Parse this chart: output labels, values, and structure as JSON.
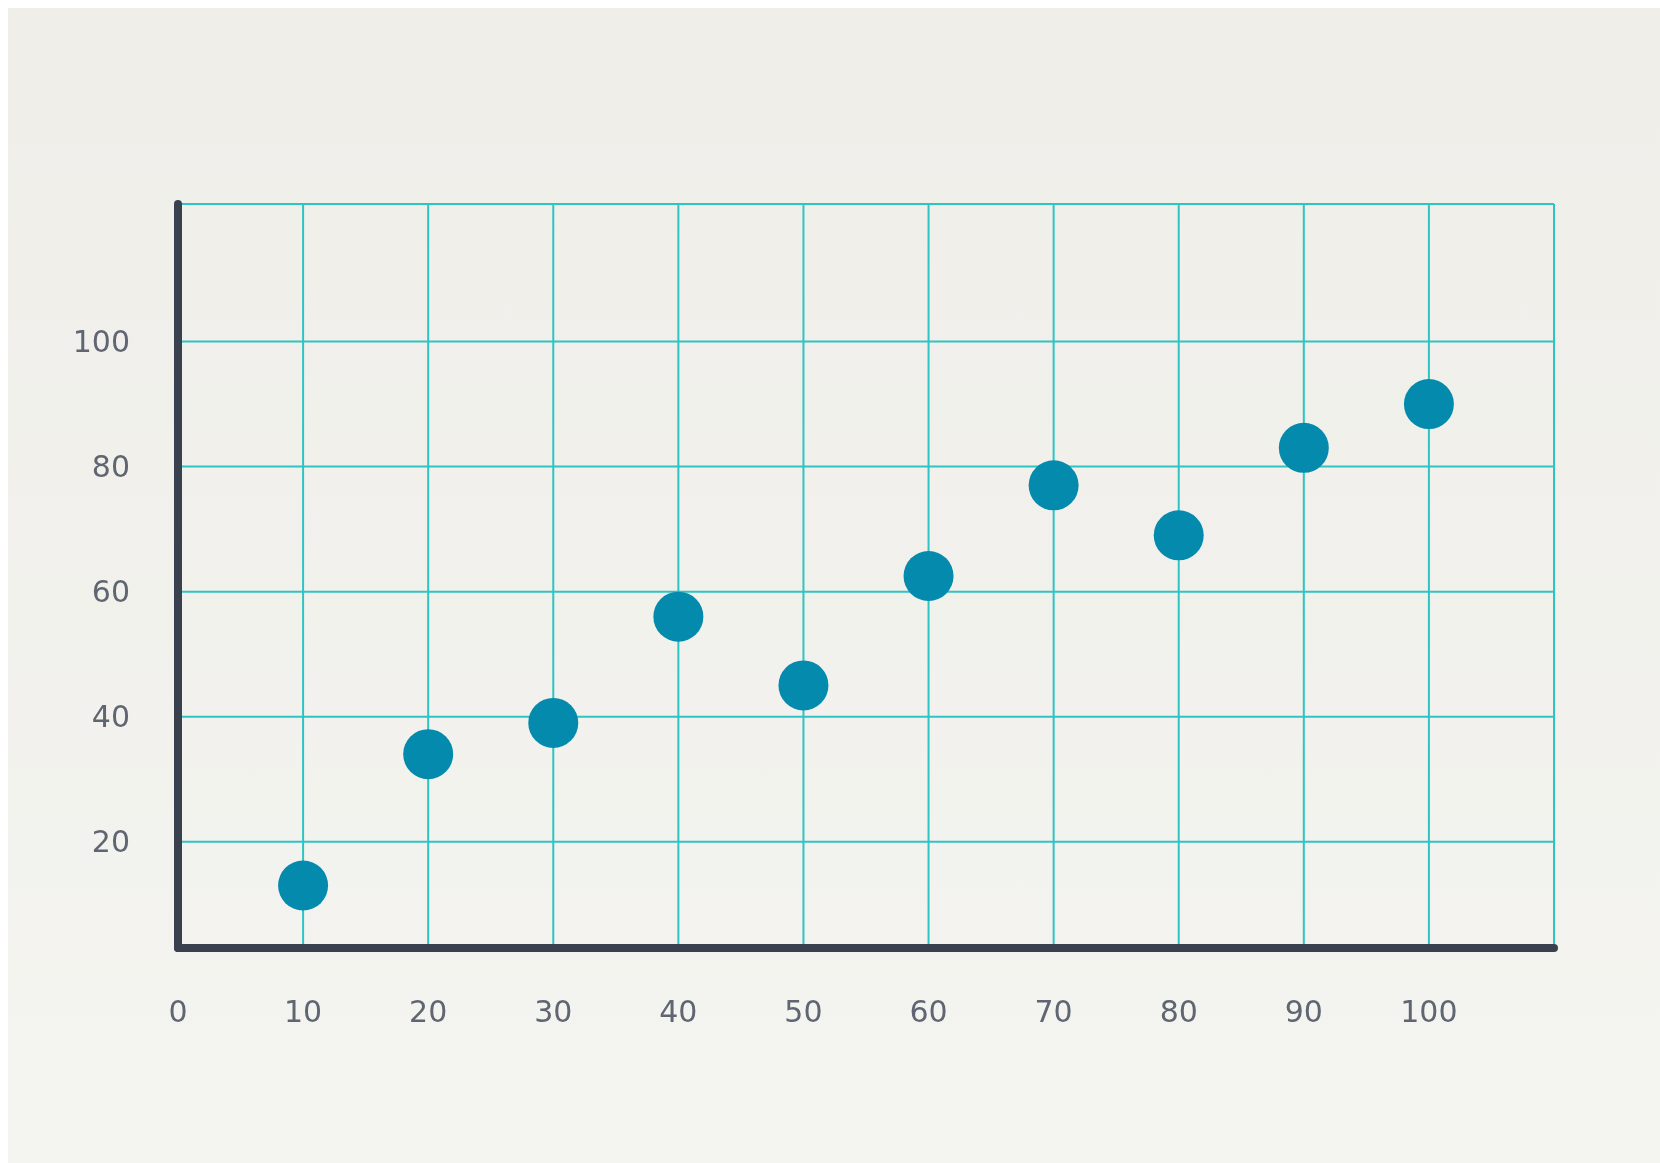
{
  "chart_data": {
    "type": "scatter",
    "x": [
      10,
      20,
      30,
      40,
      50,
      60,
      70,
      80,
      90,
      100
    ],
    "values": [
      13,
      34,
      39,
      56,
      45,
      62.5,
      77,
      69,
      83,
      90
    ],
    "color": "#038aad",
    "xlim": [
      0,
      110
    ],
    "ylim": [
      3,
      122
    ],
    "xticks": [
      0,
      10,
      20,
      30,
      40,
      50,
      60,
      70,
      80,
      90,
      100
    ],
    "yticks": [
      20,
      40,
      60,
      80,
      100
    ],
    "grid": true,
    "marker": "circle"
  }
}
